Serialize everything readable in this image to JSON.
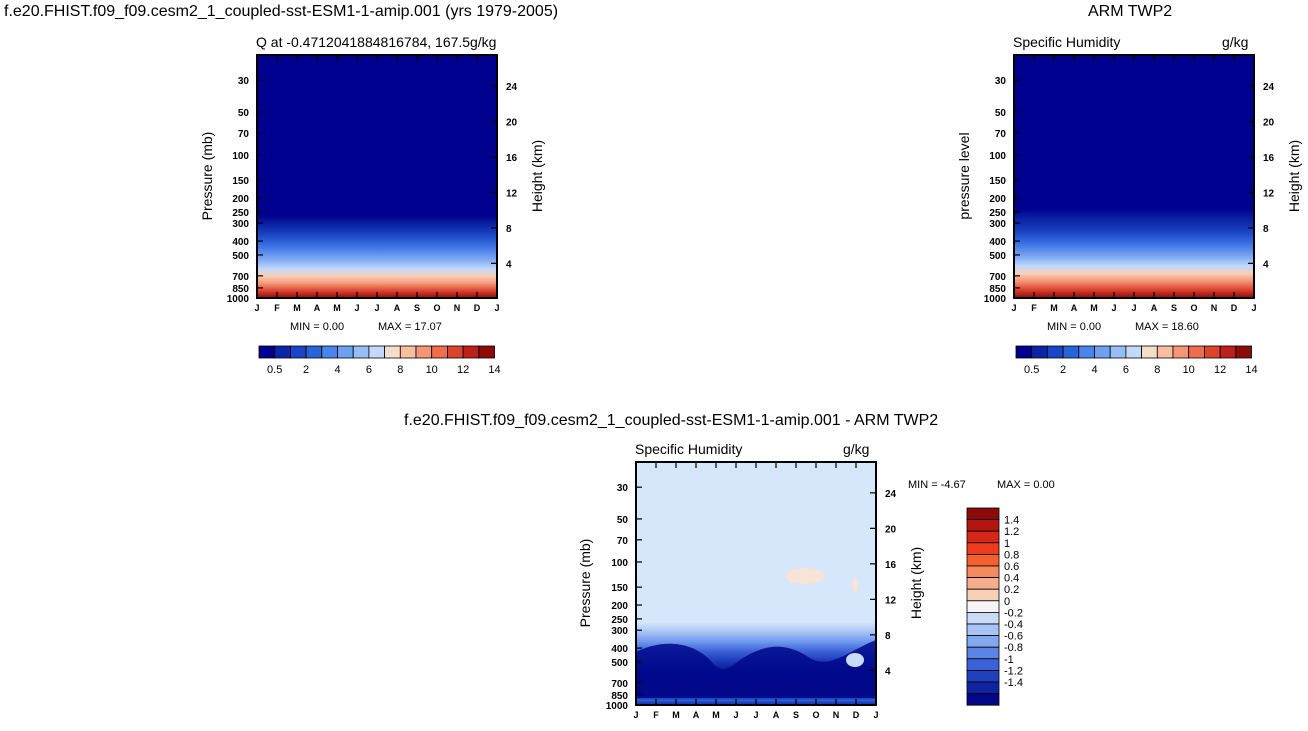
{
  "page": {
    "top_left_title": "f.e20.FHIST.f09_f09.cesm2_1_coupled-sst-ESM1-1-amip.001 (yrs 1979-2005)",
    "top_right_title": "ARM TWP2",
    "bottom_title": "f.e20.FHIST.f09_f09.cesm2_1_coupled-sst-ESM1-1-amip.001 - ARM TWP2"
  },
  "chart_data": [
    {
      "type": "heatmap",
      "title": "",
      "subtitle_left": "Q at -0.4712041884816784, 167.5",
      "subtitle_right": "g/kg",
      "xlabel": "",
      "ylabel": "Pressure (mb)",
      "ylabel_right": "Height (km)",
      "x_ticks": [
        "J",
        "F",
        "M",
        "A",
        "M",
        "J",
        "J",
        "A",
        "S",
        "O",
        "N",
        "D",
        "J"
      ],
      "y_ticks": [
        30,
        50,
        70,
        100,
        150,
        200,
        250,
        300,
        400,
        500,
        700,
        850,
        1000
      ],
      "y_right_ticks": [
        24,
        20,
        16,
        12,
        8,
        4
      ],
      "ylim": [
        1000,
        20
      ],
      "min_text": "MIN =    0.00",
      "max_text": "MAX =   17.07",
      "colorbar_orientation": "horizontal",
      "colorbar_labels": [
        "0.5",
        "2",
        "4",
        "6",
        "8",
        "10",
        "12",
        "14"
      ],
      "colors": [
        "#00008e",
        "#0c25a8",
        "#1a45c4",
        "#2b62da",
        "#4a84ec",
        "#6fa0f3",
        "#97bdf7",
        "#c3d9fa",
        "#f7dcc8",
        "#f8bea0",
        "#f59677",
        "#ef6c4e",
        "#dd4430",
        "#bf1f1b",
        "#8c0a0a"
      ]
    },
    {
      "type": "heatmap",
      "title": "",
      "subtitle_left": "Specific Humidity",
      "subtitle_right": "g/kg",
      "xlabel": "",
      "ylabel": "pressure level",
      "ylabel_right": "Height (km)",
      "x_ticks": [
        "J",
        "F",
        "M",
        "A",
        "M",
        "J",
        "J",
        "A",
        "S",
        "O",
        "N",
        "D",
        "J"
      ],
      "y_ticks": [
        30,
        50,
        70,
        100,
        150,
        200,
        250,
        300,
        400,
        500,
        700,
        850,
        1000
      ],
      "y_right_ticks": [
        24,
        20,
        16,
        12,
        8,
        4
      ],
      "ylim": [
        1000,
        20
      ],
      "min_text": "MIN =    0.00",
      "max_text": "MAX =   18.60",
      "colorbar_orientation": "horizontal",
      "colorbar_labels": [
        "0.5",
        "2",
        "4",
        "6",
        "8",
        "10",
        "12",
        "14"
      ]
    },
    {
      "type": "heatmap",
      "title": "",
      "subtitle_left": "Specific Humidity",
      "subtitle_right": "g/kg",
      "xlabel": "",
      "ylabel": "Pressure (mb)",
      "ylabel_right": "Height (km)",
      "x_ticks": [
        "J",
        "F",
        "M",
        "A",
        "M",
        "J",
        "J",
        "A",
        "S",
        "O",
        "N",
        "D",
        "J"
      ],
      "y_ticks": [
        30,
        50,
        70,
        100,
        150,
        200,
        250,
        300,
        400,
        500,
        700,
        850,
        1000
      ],
      "y_right_ticks": [
        24,
        20,
        16,
        12,
        8,
        4
      ],
      "ylim": [
        1000,
        20
      ],
      "min_text": "MIN =   -4.67",
      "max_text": "MAX =    0.00",
      "colorbar_orientation": "vertical",
      "colorbar_labels": [
        "1.4",
        "1.2",
        "1",
        "0.8",
        "0.6",
        "0.4",
        "0.2",
        "0",
        "-0.2",
        "-0.4",
        "-0.6",
        "-0.8",
        "-1",
        "-1.2",
        "-1.4"
      ],
      "colors": [
        "#8c0a0a",
        "#b51510",
        "#d6281a",
        "#ee3c1e",
        "#f4602f",
        "#f58a5f",
        "#f6ae8c",
        "#f8d0b8",
        "#f5f5f5",
        "#c9dcf7",
        "#a6c4f5",
        "#83a8f0",
        "#5a84e6",
        "#3b60d8",
        "#2240bd",
        "#0f24a0",
        "#00088a"
      ]
    }
  ]
}
